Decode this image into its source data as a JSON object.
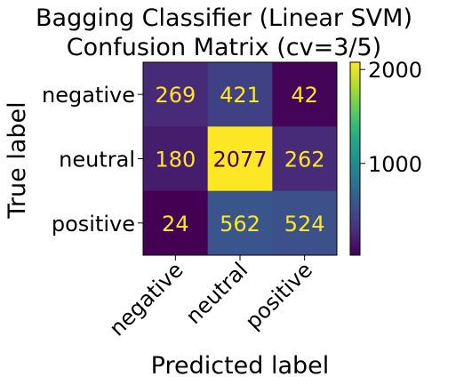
{
  "chart_data": {
    "type": "heatmap",
    "title": "Bagging Classifier (Linear SVM)",
    "subtitle": "Confusion Matrix (cv=3/5)",
    "xlabel": "Predicted label",
    "ylabel": "True label",
    "x_categories": [
      "negative",
      "neutral",
      "positive"
    ],
    "y_categories": [
      "negative",
      "neutral",
      "positive"
    ],
    "values": [
      [
        269,
        421,
        42
      ],
      [
        180,
        2077,
        262
      ],
      [
        24,
        562,
        524
      ]
    ],
    "colormap": "viridis",
    "colorbar": {
      "ticks": [
        1000,
        2000
      ],
      "range": [
        24,
        2077
      ]
    },
    "text_colors": {
      "light": "#fde725",
      "dark": "#440154"
    }
  }
}
